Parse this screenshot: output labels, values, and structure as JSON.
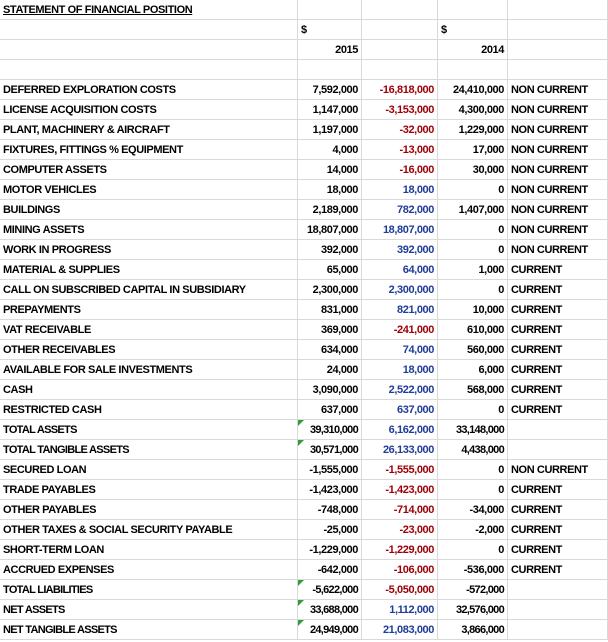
{
  "title": "STATEMENT OF FINANCIAL POSITION",
  "header": {
    "currency_2015": "$",
    "currency_2014": "$",
    "year_2015": "2015",
    "year_2014": "2014"
  },
  "rows": [
    {
      "label": "DEFERRED EXPLORATION COSTS",
      "y2015": "7,592,000",
      "change": "-16,818,000",
      "y2014": "24,410,000",
      "class": "NON CURRENT"
    },
    {
      "label": "LICENSE ACQUISITION COSTS",
      "y2015": "1,147,000",
      "change": "-3,153,000",
      "y2014": "4,300,000",
      "class": "NON CURRENT"
    },
    {
      "label": "PLANT, MACHINERY & AIRCRAFT",
      "y2015": "1,197,000",
      "change": "-32,000",
      "y2014": "1,229,000",
      "class": "NON CURRENT"
    },
    {
      "label": "FIXTURES, FITTINGS % EQUIPMENT",
      "y2015": "4,000",
      "change": "-13,000",
      "y2014": "17,000",
      "class": "NON CURRENT"
    },
    {
      "label": "COMPUTER ASSETS",
      "y2015": "14,000",
      "change": "-16,000",
      "y2014": "30,000",
      "class": "NON CURRENT"
    },
    {
      "label": "MOTOR VEHICLES",
      "y2015": "18,000",
      "change": "18,000",
      "y2014": "0",
      "class": "NON CURRENT"
    },
    {
      "label": "BUILDINGS",
      "y2015": "2,189,000",
      "change": "782,000",
      "y2014": "1,407,000",
      "class": "NON CURRENT"
    },
    {
      "label": "MINING ASSETS",
      "y2015": "18,807,000",
      "change": "18,807,000",
      "y2014": "0",
      "class": "NON CURRENT"
    },
    {
      "label": "WORK IN PROGRESS",
      "y2015": "392,000",
      "change": "392,000",
      "y2014": "0",
      "class": "NON CURRENT"
    },
    {
      "label": "MATERIAL & SUPPLIES",
      "y2015": "65,000",
      "change": "64,000",
      "y2014": "1,000",
      "class": "CURRENT"
    },
    {
      "label": "CALL ON SUBSCRIBED CAPITAL IN SUBSIDIARY",
      "y2015": "2,300,000",
      "change": "2,300,000",
      "y2014": "0",
      "class": "CURRENT"
    },
    {
      "label": "PREPAYMENTS",
      "y2015": "831,000",
      "change": "821,000",
      "y2014": "10,000",
      "class": "CURRENT"
    },
    {
      "label": "VAT RECEIVABLE",
      "y2015": "369,000",
      "change": "-241,000",
      "y2014": "610,000",
      "class": "CURRENT"
    },
    {
      "label": "OTHER RECEIVABLES",
      "y2015": "634,000",
      "change": "74,000",
      "y2014": "560,000",
      "class": "CURRENT"
    },
    {
      "label": "AVAILABLE FOR SALE INVESTMENTS",
      "y2015": "24,000",
      "change": "18,000",
      "y2014": "6,000",
      "class": "CURRENT"
    },
    {
      "label": "CASH",
      "y2015": "3,090,000",
      "change": "2,522,000",
      "y2014": "568,000",
      "class": "CURRENT"
    },
    {
      "label": "RESTRICTED CASH",
      "y2015": "637,000",
      "change": "637,000",
      "y2014": "0",
      "class": "CURRENT"
    },
    {
      "label": "TOTAL ASSETS",
      "y2015": "39,310,000",
      "change": "6,162,000",
      "y2014": "33,148,000"
    },
    {
      "label": "TOTAL TANGIBLE ASSETS",
      "y2015": "30,571,000",
      "change": "26,133,000",
      "y2014": "4,438,000"
    },
    {
      "label": "SECURED LOAN",
      "y2015": "-1,555,000",
      "change": "-1,555,000",
      "y2014": "0",
      "class": "NON CURRENT"
    },
    {
      "label": "TRADE PAYABLES",
      "y2015": "-1,423,000",
      "change": "-1,423,000",
      "y2014": "0",
      "class": "CURRENT"
    },
    {
      "label": "OTHER PAYABLES",
      "y2015": "-748,000",
      "change": "-714,000",
      "y2014": "-34,000",
      "class": "CURRENT"
    },
    {
      "label": "OTHER TAXES & SOCIAL SECURITY PAYABLE",
      "y2015": "-25,000",
      "change": "-23,000",
      "y2014": "-2,000",
      "class": "CURRENT"
    },
    {
      "label": "SHORT-TERM LOAN",
      "y2015": "-1,229,000",
      "change": "-1,229,000",
      "y2014": "0",
      "class": "CURRENT"
    },
    {
      "label": "ACCRUED EXPENSES",
      "y2015": "-642,000",
      "change": "-106,000",
      "y2014": "-536,000",
      "class": "CURRENT"
    },
    {
      "label": "TOTAL LIABILITIES",
      "y2015": "-5,622,000",
      "change": "-5,050,000",
      "y2014": "-572,000"
    },
    {
      "label": "NET ASSETS",
      "y2015": "33,688,000",
      "change": "1,112,000",
      "y2014": "32,576,000"
    },
    {
      "label": "NET TANGIBLE ASSETS",
      "y2015": "24,949,000",
      "change": "21,083,000",
      "y2014": "3,866,000"
    }
  ]
}
